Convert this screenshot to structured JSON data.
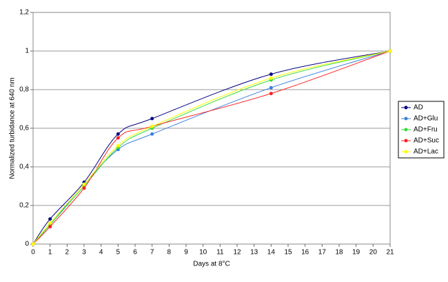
{
  "chart_data": {
    "type": "line",
    "xlabel": "Days at 8°C",
    "ylabel": "Normalized turbidance at 640 nm",
    "x": [
      0,
      1,
      3,
      5,
      7,
      14,
      21
    ],
    "series": [
      {
        "name": "AD",
        "color": "#000080",
        "values": [
          0,
          0.13,
          0.32,
          0.57,
          0.65,
          0.88,
          1
        ]
      },
      {
        "name": "AD+Glu",
        "color": "#3a7fe0",
        "values": [
          0,
          0.1,
          0.31,
          0.49,
          0.57,
          0.81,
          1
        ]
      },
      {
        "name": "AD+Fru",
        "color": "#33dd33",
        "values": [
          0,
          0.1,
          0.3,
          0.5,
          0.6,
          0.85,
          1
        ]
      },
      {
        "name": "AD+Suc",
        "color": "#ff2020",
        "values": [
          0,
          0.09,
          0.29,
          0.55,
          0.61,
          0.78,
          1
        ]
      },
      {
        "name": "AD+Lac",
        "color": "#ffff00",
        "values": [
          0,
          0.11,
          0.31,
          0.51,
          0.61,
          0.86,
          1
        ]
      }
    ],
    "xlim": [
      0,
      21
    ],
    "xticks": [
      0,
      1,
      2,
      3,
      4,
      5,
      6,
      7,
      8,
      9,
      10,
      11,
      12,
      13,
      14,
      15,
      16,
      17,
      18,
      19,
      20,
      21
    ],
    "ylim": [
      0,
      1.2
    ],
    "yticks": [
      0,
      {
        "value": 0.2,
        "label": "0,2"
      },
      {
        "value": 0.4,
        "label": "0,4"
      },
      {
        "value": 0.6,
        "label": "0,6"
      },
      {
        "value": 0.8,
        "label": "0,8"
      },
      1,
      {
        "value": 1.2,
        "label": "1,2"
      }
    ],
    "grid": true,
    "smooth": true,
    "legend": "right"
  }
}
